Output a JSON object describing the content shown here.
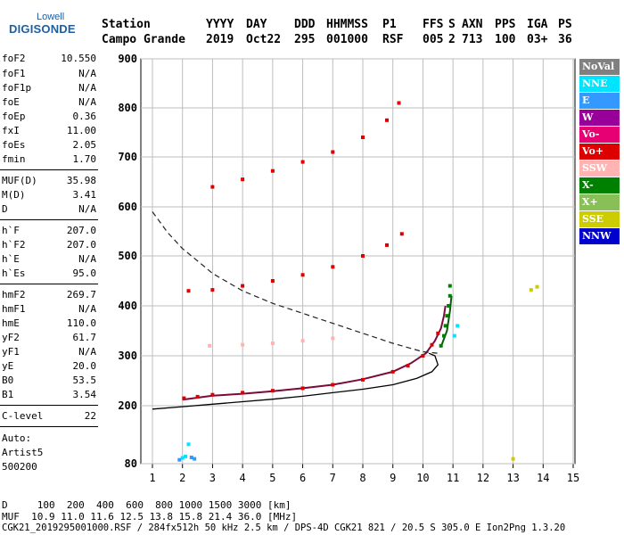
{
  "logo": {
    "line1": "Lowell",
    "line2": "DIGISONDE"
  },
  "header": {
    "labels": [
      "Station",
      "YYYY",
      "DAY",
      "DDD",
      "HHMMSS",
      "P1",
      "FFS",
      "S",
      "AXN",
      "PPS",
      "IGA",
      "PS"
    ],
    "values": [
      "Campo Grande",
      "2019",
      "Oct22",
      "295",
      "001000",
      "RSF",
      "005",
      "2",
      "713",
      "100",
      "03+",
      "36"
    ]
  },
  "params": [
    {
      "k": "foF2",
      "v": "10.550"
    },
    {
      "k": "foF1",
      "v": "N/A"
    },
    {
      "k": "foF1p",
      "v": "N/A"
    },
    {
      "k": "foE",
      "v": "N/A"
    },
    {
      "k": "foEp",
      "v": "0.36"
    },
    {
      "k": "fxI",
      "v": "11.00"
    },
    {
      "k": "foEs",
      "v": "2.05"
    },
    {
      "k": "fmin",
      "v": "1.70"
    },
    {
      "k": "MUF(D)",
      "v": "35.98"
    },
    {
      "k": "M(D)",
      "v": "3.41"
    },
    {
      "k": "D",
      "v": "N/A"
    },
    {
      "k": "h`F",
      "v": "207.0"
    },
    {
      "k": "h`F2",
      "v": "207.0"
    },
    {
      "k": "h`E",
      "v": "N/A"
    },
    {
      "k": "h`Es",
      "v": "95.0"
    },
    {
      "k": "hmF2",
      "v": "269.7"
    },
    {
      "k": "hmF1",
      "v": "N/A"
    },
    {
      "k": "hmE",
      "v": "110.0"
    },
    {
      "k": "yF2",
      "v": "61.7"
    },
    {
      "k": "yF1",
      "v": "N/A"
    },
    {
      "k": "yE",
      "v": "20.0"
    },
    {
      "k": "B0",
      "v": "53.5"
    },
    {
      "k": "B1",
      "v": "3.54"
    },
    {
      "k": "C-level",
      "v": "22"
    }
  ],
  "auto": {
    "line1": "Auto:",
    "line2": "Artist5",
    "line3": "500200"
  },
  "legend": [
    {
      "label": "NoVal",
      "color": "#808080"
    },
    {
      "label": "NNE",
      "color": "#00e5ff"
    },
    {
      "label": "E",
      "color": "#3399ff"
    },
    {
      "label": "W",
      "color": "#990099"
    },
    {
      "label": "Vo-",
      "color": "#e60073"
    },
    {
      "label": "Vo+",
      "color": "#dd0000"
    },
    {
      "label": "SSW",
      "color": "#ffb3b3"
    },
    {
      "label": "X-",
      "color": "#008000"
    },
    {
      "label": "X+",
      "color": "#88c057"
    },
    {
      "label": "SSE",
      "color": "#cccc00"
    },
    {
      "label": "NNW",
      "color": "#0000cc"
    }
  ],
  "chart_data": {
    "type": "scatter",
    "xlabel": "",
    "ylabel": "",
    "xlim": [
      1,
      15
    ],
    "ylim": [
      80,
      900
    ],
    "x_ticks": [
      "1",
      "2",
      "3",
      "4",
      "5",
      "6",
      "7",
      "8",
      "9",
      "10",
      "11",
      "12",
      "13",
      "14",
      "15"
    ],
    "y_ticks": [
      "80",
      "200",
      "300",
      "400",
      "500",
      "600",
      "700",
      "800",
      "900"
    ],
    "grid": true,
    "series": [
      {
        "name": "Vo+",
        "points": [
          [
            2.05,
            215
          ],
          [
            2.5,
            218
          ],
          [
            3,
            222
          ],
          [
            4,
            226
          ],
          [
            5,
            230
          ],
          [
            6,
            235
          ],
          [
            7,
            242
          ],
          [
            8,
            252
          ],
          [
            9,
            268
          ],
          [
            9.5,
            280
          ],
          [
            10,
            300
          ],
          [
            10.3,
            322
          ],
          [
            10.5,
            345
          ],
          [
            2.2,
            430
          ],
          [
            3,
            432
          ],
          [
            4,
            440
          ],
          [
            5,
            450
          ],
          [
            6,
            462
          ],
          [
            7,
            478
          ],
          [
            8,
            500
          ],
          [
            8.8,
            522
          ],
          [
            9.3,
            545
          ],
          [
            3,
            640
          ],
          [
            4,
            655
          ],
          [
            5,
            672
          ],
          [
            6,
            690
          ],
          [
            7,
            710
          ],
          [
            8,
            740
          ],
          [
            8.8,
            775
          ],
          [
            9.2,
            810
          ]
        ]
      },
      {
        "name": "X-",
        "points": [
          [
            10.6,
            320
          ],
          [
            10.7,
            340
          ],
          [
            10.75,
            360
          ],
          [
            10.8,
            380
          ],
          [
            10.85,
            400
          ],
          [
            10.9,
            420
          ],
          [
            10.9,
            440
          ]
        ]
      },
      {
        "name": "SSW",
        "points": [
          [
            2.9,
            320
          ],
          [
            4,
            322
          ],
          [
            5,
            325
          ],
          [
            6,
            330
          ],
          [
            7,
            335
          ]
        ]
      },
      {
        "name": "NNE",
        "points": [
          [
            2,
            92
          ],
          [
            2.1,
            95
          ],
          [
            2.2,
            120
          ],
          [
            11.05,
            340
          ],
          [
            11.15,
            360
          ]
        ]
      },
      {
        "name": "E",
        "points": [
          [
            1.9,
            88
          ],
          [
            2.3,
            93
          ],
          [
            2.4,
            90
          ]
        ]
      },
      {
        "name": "SSE",
        "points": [
          [
            13,
            90
          ],
          [
            13.6,
            432
          ],
          [
            13.8,
            438
          ]
        ]
      }
    ],
    "lines": [
      {
        "name": "O-trace",
        "points": [
          [
            2,
            212
          ],
          [
            3,
            220
          ],
          [
            4,
            224
          ],
          [
            5,
            229
          ],
          [
            6,
            235
          ],
          [
            7,
            242
          ],
          [
            8,
            253
          ],
          [
            9,
            268
          ],
          [
            9.6,
            285
          ],
          [
            10.1,
            305
          ],
          [
            10.4,
            330
          ],
          [
            10.6,
            355
          ],
          [
            10.7,
            380
          ],
          [
            10.75,
            400
          ]
        ]
      },
      {
        "name": "X-trace",
        "points": [
          [
            10.6,
            318
          ],
          [
            10.8,
            350
          ],
          [
            10.9,
            390
          ],
          [
            10.95,
            420
          ]
        ]
      },
      {
        "name": "profile",
        "points": [
          [
            1,
            193
          ],
          [
            2,
            198
          ],
          [
            3,
            203
          ],
          [
            4,
            208
          ],
          [
            5,
            213
          ],
          [
            6,
            219
          ],
          [
            7,
            226
          ],
          [
            8,
            233
          ],
          [
            9,
            242
          ],
          [
            9.8,
            255
          ],
          [
            10.3,
            268
          ],
          [
            10.5,
            282
          ],
          [
            10.4,
            300
          ],
          [
            10.2,
            305
          ]
        ]
      },
      {
        "name": "MUF-dashed",
        "points": [
          [
            1,
            590
          ],
          [
            1.5,
            548
          ],
          [
            2,
            515
          ],
          [
            2.5,
            490
          ],
          [
            3,
            465
          ],
          [
            4,
            430
          ],
          [
            5,
            405
          ],
          [
            6,
            385
          ],
          [
            7,
            365
          ],
          [
            8,
            345
          ],
          [
            9,
            325
          ],
          [
            10,
            308
          ],
          [
            10.5,
            305
          ]
        ]
      }
    ]
  },
  "footer": {
    "line1": "D     100  200  400  600  800 1000 1500 3000 [km]",
    "line2": "MUF  10.9 11.0 11.6 12.5 13.8 15.8 21.4 36.0 [MHz]",
    "line3": "CGK21_2019295001000.RSF / 284fx512h 50 kHz 2.5 km / DPS-4D CGK21 821 / 20.5 S 305.0 E Ion2Png 1.3.20"
  }
}
